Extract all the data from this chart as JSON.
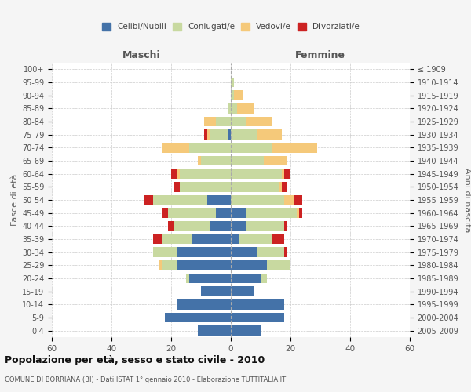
{
  "age_groups": [
    "100+",
    "95-99",
    "90-94",
    "85-89",
    "80-84",
    "75-79",
    "70-74",
    "65-69",
    "60-64",
    "55-59",
    "50-54",
    "45-49",
    "40-44",
    "35-39",
    "30-34",
    "25-29",
    "20-24",
    "15-19",
    "10-14",
    "5-9",
    "0-4"
  ],
  "birth_years": [
    "≤ 1909",
    "1910-1914",
    "1915-1919",
    "1920-1924",
    "1925-1929",
    "1930-1934",
    "1935-1939",
    "1940-1944",
    "1945-1949",
    "1950-1954",
    "1955-1959",
    "1960-1964",
    "1965-1969",
    "1970-1974",
    "1975-1979",
    "1980-1984",
    "1985-1989",
    "1990-1994",
    "1995-1999",
    "2000-2004",
    "2005-2009"
  ],
  "males": {
    "celibi": [
      0,
      0,
      0,
      0,
      0,
      1,
      0,
      0,
      0,
      0,
      8,
      5,
      7,
      13,
      18,
      18,
      14,
      10,
      18,
      22,
      11
    ],
    "coniugati": [
      0,
      0,
      0,
      1,
      5,
      6,
      14,
      10,
      17,
      17,
      18,
      16,
      12,
      10,
      8,
      5,
      1,
      0,
      0,
      0,
      0
    ],
    "vedovi": [
      0,
      0,
      0,
      0,
      4,
      1,
      9,
      1,
      1,
      0,
      0,
      0,
      0,
      0,
      0,
      1,
      0,
      0,
      0,
      0,
      0
    ],
    "divorziati": [
      0,
      0,
      0,
      0,
      0,
      1,
      0,
      0,
      2,
      2,
      3,
      2,
      2,
      3,
      0,
      0,
      0,
      0,
      0,
      0,
      0
    ]
  },
  "females": {
    "nubili": [
      0,
      0,
      0,
      0,
      0,
      0,
      0,
      0,
      0,
      0,
      0,
      5,
      5,
      3,
      9,
      12,
      10,
      8,
      18,
      18,
      10
    ],
    "coniugate": [
      0,
      1,
      1,
      2,
      5,
      9,
      14,
      11,
      17,
      16,
      18,
      17,
      13,
      11,
      9,
      8,
      2,
      0,
      0,
      0,
      0
    ],
    "vedove": [
      0,
      0,
      3,
      6,
      9,
      8,
      15,
      8,
      1,
      1,
      3,
      1,
      0,
      0,
      0,
      0,
      0,
      0,
      0,
      0,
      0
    ],
    "divorziate": [
      0,
      0,
      0,
      0,
      0,
      0,
      0,
      0,
      2,
      2,
      3,
      1,
      1,
      4,
      1,
      0,
      0,
      0,
      0,
      0,
      0
    ]
  },
  "colors": {
    "celibi": "#4472a8",
    "coniugati": "#c8d9a0",
    "vedovi": "#f5c97a",
    "divorziati": "#cc2222"
  },
  "title": "Popolazione per età, sesso e stato civile - 2010",
  "subtitle": "COMUNE DI BORRIANA (BI) - Dati ISTAT 1° gennaio 2010 - Elaborazione TUTTITALIA.IT",
  "xlabel_left": "Maschi",
  "xlabel_right": "Femmine",
  "ylabel_left": "Fasce di età",
  "ylabel_right": "Anni di nascita",
  "xlim": 60,
  "legend_labels": [
    "Celibi/Nubili",
    "Coniugati/e",
    "Vedovi/e",
    "Divorziati/e"
  ],
  "bg_color": "#f5f5f5",
  "plot_bg": "#ffffff",
  "grid_color": "#cccccc"
}
